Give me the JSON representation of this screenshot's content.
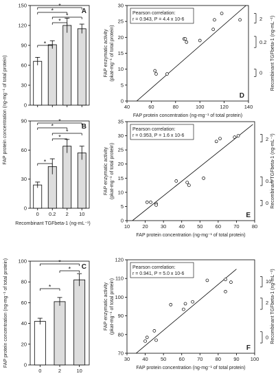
{
  "panels": [
    {
      "id": "A",
      "letter": "A",
      "type": "bar",
      "categories": [
        "0",
        "0.2",
        "2",
        "10"
      ],
      "values": [
        66,
        91,
        120,
        115
      ],
      "errors": [
        6,
        6,
        11,
        7
      ],
      "ylim": [
        0,
        150
      ],
      "yticks": [
        0,
        30,
        60,
        90,
        120,
        150
      ],
      "show_xticks": false,
      "sig": [
        "*",
        "*",
        "*",
        "*",
        "*"
      ]
    },
    {
      "id": "B",
      "letter": "B",
      "type": "bar",
      "categories": [
        "0",
        "0.2",
        "2",
        "10"
      ],
      "values": [
        24,
        43,
        64,
        57
      ],
      "errors": [
        3,
        8,
        7,
        7
      ],
      "ylim": [
        0,
        90
      ],
      "yticks": [
        0,
        30,
        60,
        90
      ],
      "show_xticks": true,
      "xlabel": "Recombinant TGFbeta-1 (ng-mL⁻¹)",
      "sig": [
        "*",
        "*",
        "*",
        "*",
        "*"
      ]
    },
    {
      "id": "C",
      "letter": "C",
      "type": "bar",
      "categories": [
        "0",
        "2",
        "10"
      ],
      "values": [
        42,
        61,
        82
      ],
      "errors": [
        3,
        4,
        6
      ],
      "ylim": [
        0,
        100
      ],
      "yticks": [
        0,
        20,
        40,
        60,
        80,
        100
      ],
      "show_xticks": true,
      "xlabel": "Recombinant TGFbeta-1 (ng-mL⁻¹)",
      "ylabel": "FAP protein concentration (ng-mg⁻¹ of total protein)",
      "sig": [
        "*",
        "*",
        "*"
      ]
    },
    {
      "id": "D",
      "letter": "D",
      "type": "scatter",
      "xlim": [
        40,
        140
      ],
      "xticks": [
        40,
        60,
        80,
        100,
        120,
        140
      ],
      "ylim": [
        0,
        30
      ],
      "yticks": [
        0,
        5,
        10,
        15,
        20,
        25,
        30
      ],
      "points": [
        [
          63,
          9.5
        ],
        [
          64,
          8.5
        ],
        [
          73,
          8.5
        ],
        [
          87,
          19.5
        ],
        [
          88,
          19.5
        ],
        [
          89,
          18.5
        ],
        [
          100,
          19.0
        ],
        [
          111,
          22.5
        ],
        [
          112,
          25.5
        ],
        [
          118,
          27.5
        ],
        [
          133,
          25.5
        ]
      ],
      "fit": [
        [
          48,
          0
        ],
        [
          138,
          30
        ]
      ],
      "annot_title": "Pearson correlation:",
      "annot_stats": "r = 0.943, P = 4.4 x 10-6",
      "right_labels": [
        "2",
        "0.2",
        "0"
      ],
      "right_label_y": [
        25.8,
        18.5,
        8.9
      ],
      "right_bracket": [
        [
          27.5,
          24.5
        ],
        [
          20.3,
          16.8
        ],
        [
          10,
          7.7
        ]
      ],
      "xlabel": "FAP protein concentration (ng-mg⁻¹ of total protein)"
    },
    {
      "id": "E",
      "letter": "E",
      "type": "scatter",
      "xlim": [
        10,
        80
      ],
      "xticks": [
        10,
        20,
        30,
        40,
        50,
        60,
        70,
        80
      ],
      "ylim": [
        0,
        35
      ],
      "yticks": [
        0,
        5,
        10,
        15,
        20,
        25,
        30,
        35
      ],
      "points": [
        [
          21,
          6.5
        ],
        [
          23,
          6.5
        ],
        [
          26,
          6.0
        ],
        [
          26,
          5.5
        ],
        [
          37,
          14.0
        ],
        [
          43,
          13.5
        ],
        [
          44,
          12.5
        ],
        [
          52,
          15.0
        ],
        [
          59,
          28.0
        ],
        [
          61,
          29.0
        ],
        [
          69,
          29.5
        ],
        [
          71,
          30.0
        ]
      ],
      "fit": [
        [
          13,
          0
        ],
        [
          79,
          34
        ]
      ],
      "annot_title": "Pearson correlation:",
      "annot_stats": "r = 0.953, P = 1.6 x 10-6",
      "right_labels": [
        "2",
        "0.2",
        "0"
      ],
      "right_label_y": [
        28.8,
        14.0,
        6.2
      ],
      "right_bracket": [
        [
          30.5,
          27.8
        ],
        [
          15.5,
          12.4
        ],
        [
          7.2,
          5.3
        ]
      ],
      "xlabel": "FAP protein concentration (ng-mg⁻¹ of total protein)"
    },
    {
      "id": "F",
      "letter": "F",
      "type": "scatter",
      "xlim": [
        30,
        100
      ],
      "xticks": [
        30,
        40,
        50,
        60,
        70,
        80,
        90,
        100
      ],
      "ylim": [
        70,
        120
      ],
      "yticks": [
        70,
        80,
        90,
        100,
        110,
        120
      ],
      "points": [
        [
          40,
          76.5
        ],
        [
          41,
          78.5
        ],
        [
          45,
          82.0
        ],
        [
          46,
          77.0
        ],
        [
          54,
          96.0
        ],
        [
          61,
          93.5
        ],
        [
          62,
          96.5
        ],
        [
          66,
          97.5
        ],
        [
          74,
          109.0
        ],
        [
          84,
          103.0
        ],
        [
          84,
          109.5
        ],
        [
          87,
          108.0
        ]
      ],
      "fit": [
        [
          35,
          70
        ],
        [
          90,
          115
        ]
      ],
      "annot_title": "Pearson correlation:",
      "annot_stats": "r = 0.941, P = 5.0 x 10-6",
      "right_labels": [
        "10",
        "2",
        "0"
      ],
      "right_label_y": [
        108.5,
        97.0,
        78.5
      ],
      "right_bracket": [
        [
          111,
          105.5
        ],
        [
          99.5,
          93.5
        ],
        [
          81.5,
          75.5
        ]
      ],
      "xlabel": "FAP protein concentration (ng-mg⁻¹ of total protein)"
    }
  ],
  "left_ylabel_top": "FAP protein concentration (ng-mg⁻¹ of total protein)",
  "scatter_ylabel_line1": "FAP enzymatic activity",
  "scatter_ylabel_line2": "(pkat-mg⁻¹ of total protein)",
  "right_axis_label": "Recombinant TGFbeta-1 (ng-mL⁻¹)",
  "colors": {
    "bar_filled": "#dddddd",
    "bar_empty": "#ffffff",
    "stroke": "#000000"
  }
}
